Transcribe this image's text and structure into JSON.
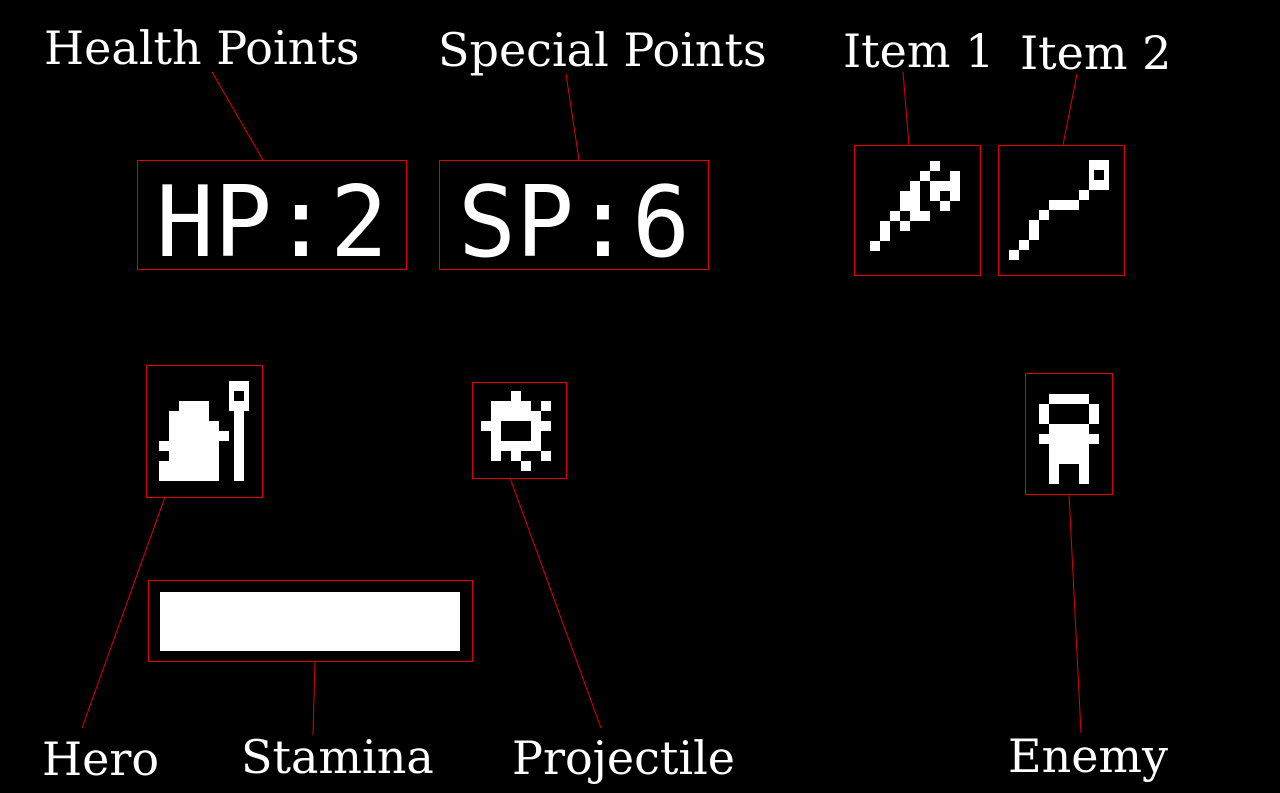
{
  "labels": {
    "health_points": "Health Points",
    "special_points": "Special Points",
    "item1": "Item 1",
    "item2": "Item 2",
    "hero": "Hero",
    "stamina": "Stamina",
    "projectile": "Projectile",
    "enemy": "Enemy"
  },
  "hud": {
    "hp": "HP:2",
    "sp": "SP:6",
    "stamina_fraction": 1.0
  },
  "colors": {
    "background": "#000000",
    "annotation": "#e00000",
    "sprite": "#ffffff"
  },
  "icons": {
    "item1": "sword-icon",
    "item2": "wand-icon",
    "hero": "hero-sprite",
    "projectile": "projectile-sprite",
    "enemy": "enemy-sprite"
  }
}
